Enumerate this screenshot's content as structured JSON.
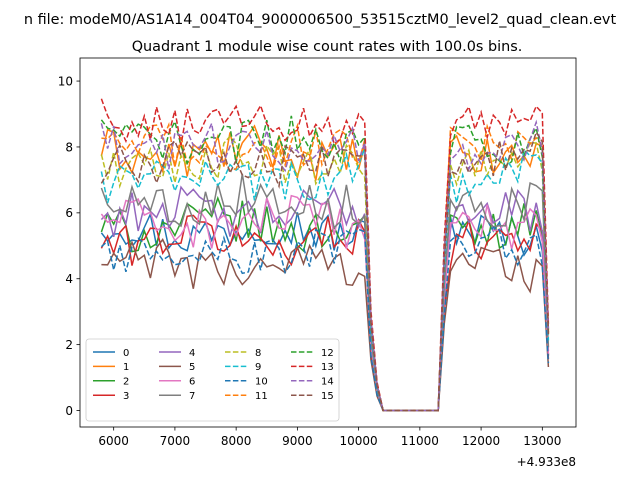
{
  "chart_data": {
    "type": "line",
    "suptitle": "n file: modeM0/AS1A14_004T04_9000006500_53515cztM0_level2_quad_clean.evt",
    "title": "Quadrant 1 module wise count rates with 100.0s bins.",
    "xlabel": "",
    "ylabel": "",
    "x_offset_label": "+4.933e8",
    "xlim": [
      5450,
      13550
    ],
    "ylim": [
      -0.5,
      10.7
    ],
    "xticks": [
      6000,
      7000,
      8000,
      9000,
      10000,
      11000,
      12000,
      13000
    ],
    "xtick_labels": [
      "6000",
      "7000",
      "8000",
      "9000",
      "10000",
      "11000",
      "12000",
      "13000"
    ],
    "yticks": [
      0,
      2,
      4,
      6,
      8,
      10
    ],
    "ytick_labels": [
      "0",
      "2",
      "4",
      "6",
      "8",
      "10"
    ],
    "x_active_start": 5800,
    "x_step": 100,
    "gap_start": 10350,
    "gap_end": 11350,
    "x_end": 13100,
    "legend": {
      "placement": "lower-left",
      "ncol": 4
    },
    "series": [
      {
        "name": "0",
        "color": "#1f77b4",
        "dash": "solid",
        "level": 5.5
      },
      {
        "name": "1",
        "color": "#ff7f0e",
        "dash": "solid",
        "level": 7.8
      },
      {
        "name": "2",
        "color": "#2ca02c",
        "dash": "solid",
        "level": 5.6
      },
      {
        "name": "3",
        "color": "#d62728",
        "dash": "solid",
        "level": 5.2
      },
      {
        "name": "4",
        "color": "#9467bd",
        "dash": "solid",
        "level": 6.0
      },
      {
        "name": "5",
        "color": "#8c564b",
        "dash": "solid",
        "level": 4.4
      },
      {
        "name": "6",
        "color": "#e377c2",
        "dash": "solid",
        "level": 5.7
      },
      {
        "name": "7",
        "color": "#7f7f7f",
        "dash": "solid",
        "level": 6.4
      },
      {
        "name": "8",
        "color": "#bcbd22",
        "dash": "dashed",
        "level": 7.5
      },
      {
        "name": "9",
        "color": "#17becf",
        "dash": "dashed",
        "level": 7.1
      },
      {
        "name": "10",
        "color": "#1f77b4",
        "dash": "dashed",
        "level": 4.8
      },
      {
        "name": "11",
        "color": "#ff7f0e",
        "dash": "dashed",
        "level": 7.9
      },
      {
        "name": "12",
        "color": "#2ca02c",
        "dash": "dashed",
        "level": 8.2
      },
      {
        "name": "13",
        "color": "#d62728",
        "dash": "dashed",
        "level": 8.7
      },
      {
        "name": "14",
        "color": "#9467bd",
        "dash": "dashed",
        "level": 8.0
      },
      {
        "name": "15",
        "color": "#8c564b",
        "dash": "dashed",
        "level": 7.6
      }
    ]
  }
}
